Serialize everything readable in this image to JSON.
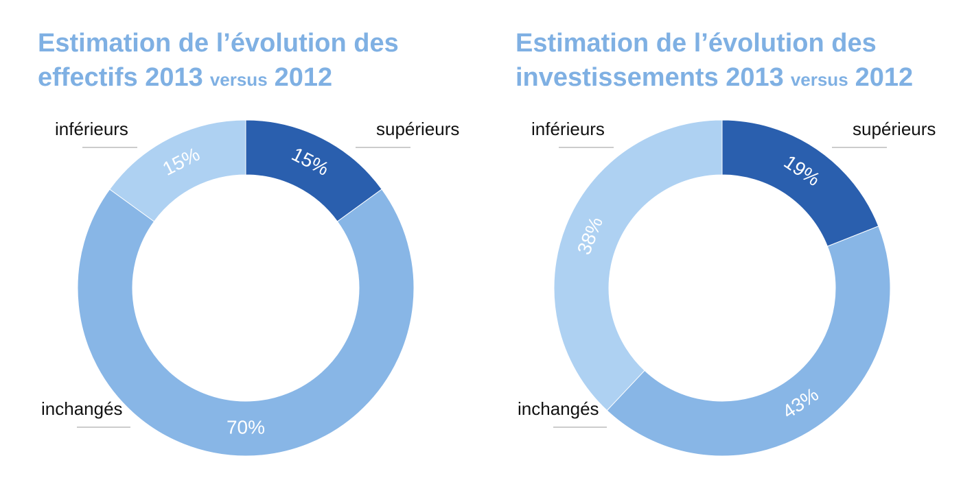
{
  "chart_data": [
    {
      "type": "pie",
      "title": [
        "Estimation de l’évolution des",
        "effectifs 2013",
        "versus",
        "2012"
      ],
      "categories": [
        "supérieurs",
        "inchangés",
        "inférieurs"
      ],
      "values": [
        15,
        70,
        15
      ],
      "value_labels": [
        "15%",
        "70%",
        "15%"
      ],
      "colors": [
        "#2a5fae",
        "#88b6e6",
        "#aed1f2"
      ]
    },
    {
      "type": "pie",
      "title": [
        "Estimation de l’évolution des",
        "investissements 2013",
        "versus",
        "2012"
      ],
      "categories": [
        "supérieurs",
        "inchangés",
        "inférieurs"
      ],
      "values": [
        19,
        43,
        38
      ],
      "value_labels": [
        "19%",
        "43%",
        "38%"
      ],
      "colors": [
        "#2a5fae",
        "#88b6e6",
        "#aed1f2"
      ]
    }
  ]
}
